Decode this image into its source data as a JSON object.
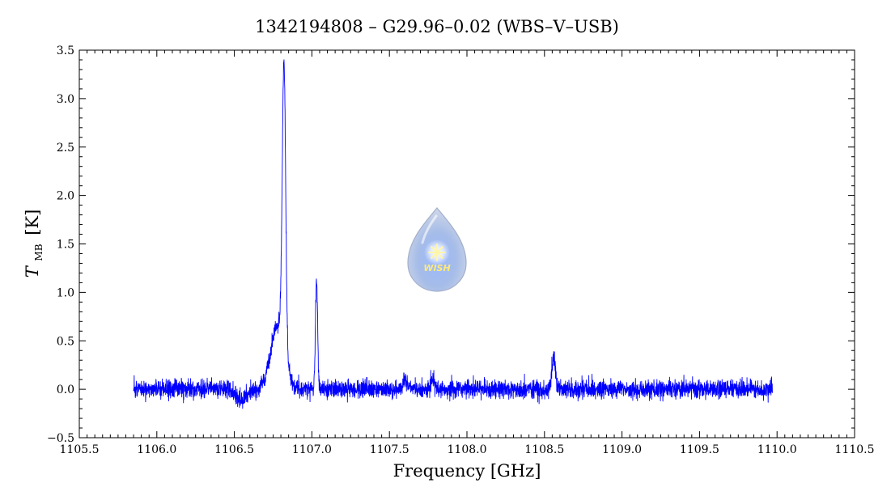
{
  "chart_data": {
    "type": "line",
    "title": "1342194808 – G29.96–0.02 (WBS–V–USB)",
    "xlabel": "Frequency [GHz]",
    "ylabel": {
      "symbol": "T",
      "subscript": "MB",
      "unit": "[K]"
    },
    "xlim": [
      1105.5,
      1110.5
    ],
    "ylim": [
      -0.5,
      3.5
    ],
    "x_ticks": [
      1105.5,
      1106.0,
      1106.5,
      1107.0,
      1107.5,
      1108.0,
      1108.5,
      1109.0,
      1109.5,
      1110.0,
      1110.5
    ],
    "x_tick_labels": [
      "1105.5",
      "1106.0",
      "1106.5",
      "1107.0",
      "1107.5",
      "1108.0",
      "1108.5",
      "1109.0",
      "1109.5",
      "1110.0",
      "1110.5"
    ],
    "y_ticks": [
      -0.5,
      0.0,
      0.5,
      1.0,
      1.5,
      2.0,
      2.5,
      3.0,
      3.5
    ],
    "y_tick_labels": [
      "−0.5",
      "0.0",
      "0.5",
      "1.0",
      "1.5",
      "2.0",
      "2.5",
      "3.0",
      "3.5"
    ],
    "grid": false,
    "series": [
      {
        "color": "#0000ff",
        "x_range": [
          1105.85,
          1109.97
        ],
        "baseline": 0.0,
        "noise_rms": 0.045,
        "features": [
          {
            "center": 1106.82,
            "peak": 2.95,
            "note": "main emission line"
          },
          {
            "center": 1106.78,
            "peak": 0.65,
            "note": "broad wing"
          },
          {
            "center": 1107.03,
            "peak": 1.12,
            "note": "secondary line"
          },
          {
            "center": 1108.56,
            "peak": 0.33,
            "note": "weak line"
          },
          {
            "center": 1107.6,
            "peak": 0.12,
            "note": "weak feature"
          },
          {
            "center": 1107.78,
            "peak": 0.1,
            "note": "weak feature"
          },
          {
            "center": 1106.55,
            "peak": -0.1,
            "note": "absorption dip"
          }
        ]
      }
    ]
  },
  "logo": {
    "text": "WISH",
    "icon": "wish-droplet-logo"
  }
}
